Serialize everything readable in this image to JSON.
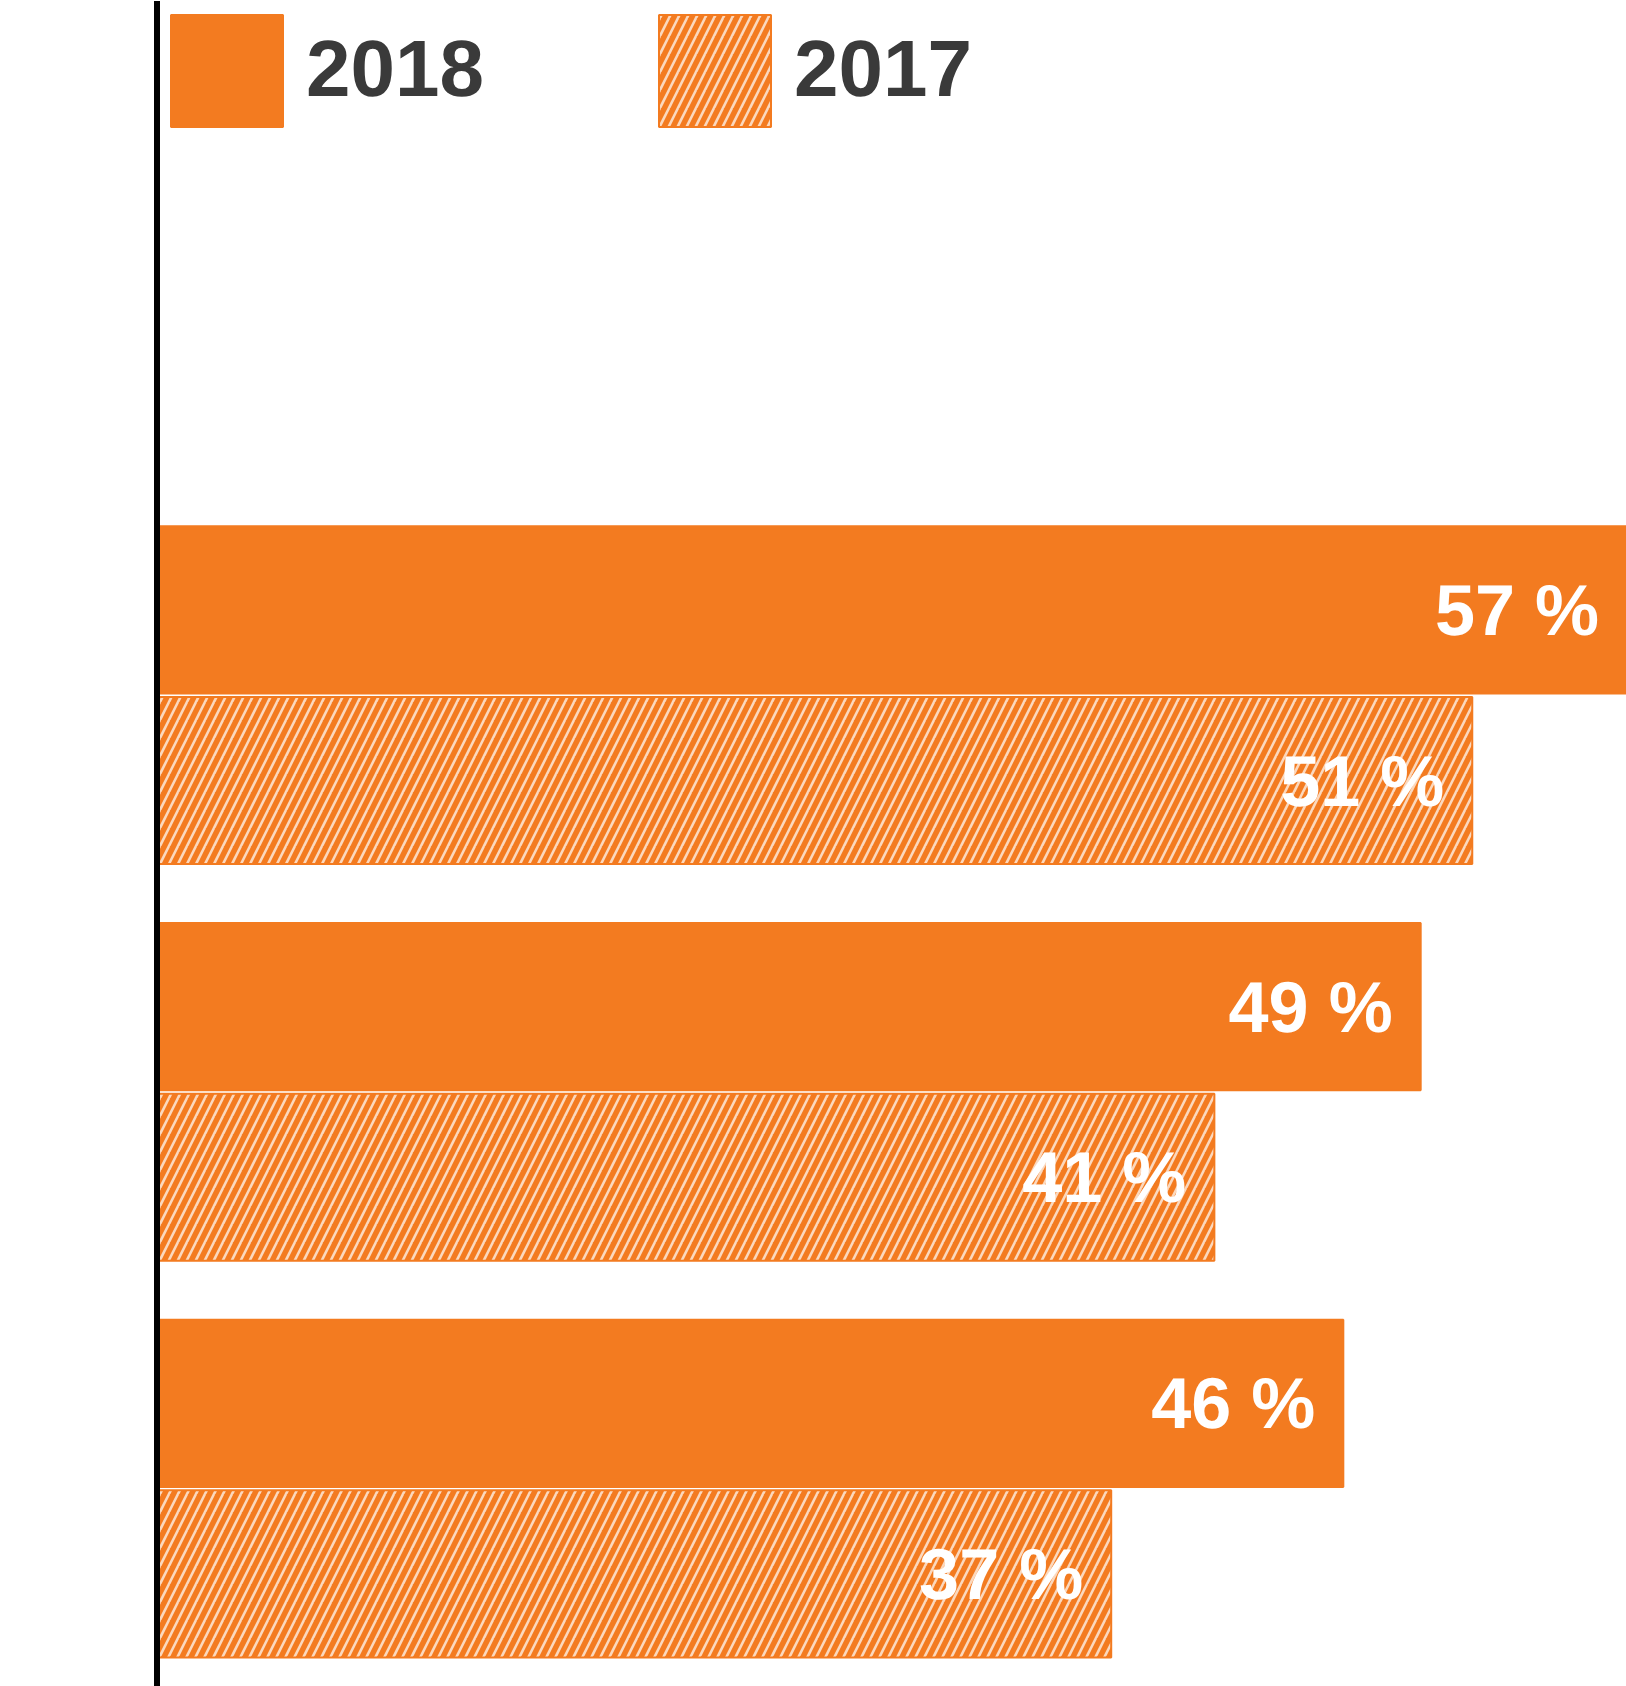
{
  "chart_data": {
    "type": "bar",
    "orientation": "horizontal",
    "categories": [
      null,
      null,
      null
    ],
    "series": [
      {
        "name": "2018",
        "color": "#f37b20",
        "values": [
          57,
          49,
          46
        ],
        "value_labels": [
          "57 %",
          "49 %",
          "46 %"
        ]
      },
      {
        "name": "2017",
        "color": "#f37b20",
        "values": [
          51,
          41,
          37
        ],
        "value_labels": [
          "51 %",
          "41 %",
          "37 %"
        ]
      }
    ],
    "legend": "top left",
    "grid": false
  }
}
